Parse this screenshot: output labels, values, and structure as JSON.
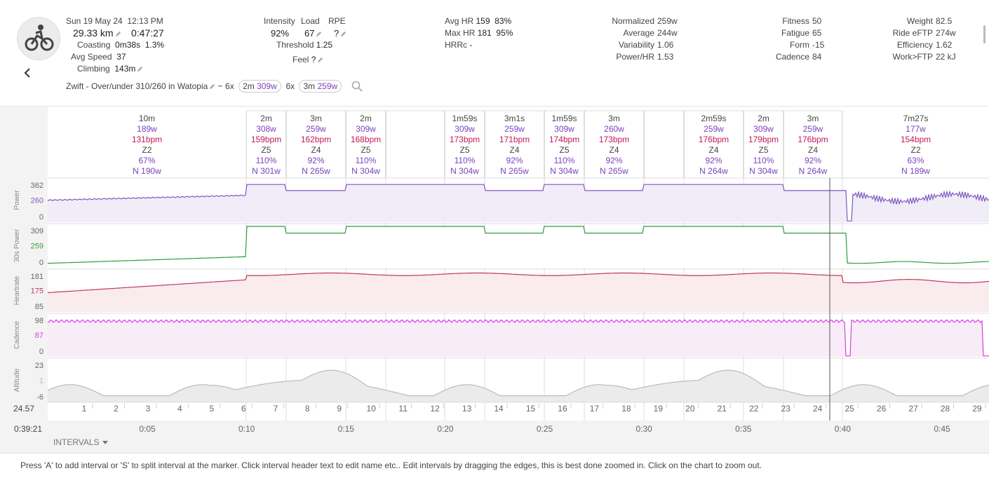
{
  "header": {
    "date": "Sun 19 May 24",
    "time": "12:13 PM",
    "distance": "29.33 km",
    "duration": "0:47:27",
    "coasting_label": "Coasting",
    "coasting_value": "0m38s",
    "coasting_pct": "1.3%",
    "avg_speed_label": "Avg Speed",
    "avg_speed_value": "37",
    "climbing_label": "Climbing",
    "climbing_value": "143m",
    "intensity_label": "Intensity",
    "intensity_value": "92%",
    "load_label": "Load",
    "load_value": "67",
    "rpe_label": "RPE",
    "rpe_value": "?",
    "threshold_label": "Threshold",
    "threshold_value": "1.25",
    "feel_label": "Feel",
    "feel_value": "?",
    "avghr_label": "Avg HR",
    "avghr_value": "159",
    "avghr_pct": "83%",
    "maxhr_label": "Max HR",
    "maxhr_value": "181",
    "maxhr_pct": "95%",
    "hrrc_label": "HRRc",
    "hrrc_value": "-",
    "normalized_label": "Normalized",
    "normalized_value": "259w",
    "average_label": "Average",
    "average_value": "244w",
    "variability_label": "Variability",
    "variability_value": "1.06",
    "powerhr_label": "Power/HR",
    "powerhr_value": "1.53",
    "fitness_label": "Fitness",
    "fitness_value": "50",
    "fatigue_label": "Fatigue",
    "fatigue_value": "65",
    "form_label": "Form",
    "form_value": "-15",
    "cadence_label": "Cadence",
    "cadence_value": "84",
    "weight_label": "Weight",
    "weight_value": "82.5",
    "rideftp_label": "Ride eFTP",
    "rideftp_value": "274w",
    "efficiency_label": "Efficiency",
    "efficiency_value": "1.62",
    "workftp_label": "Work>FTP",
    "workftp_value": "22 kJ",
    "workout_name": "Zwift - Over/under 310/260 in Watopia",
    "tilde": "~",
    "set1_reps": "6x",
    "set1_dur": "2m",
    "set1_power": "309w",
    "set2_reps": "6x",
    "set2_dur": "3m",
    "set2_power": "259w"
  },
  "intervals": [
    {
      "dur": "10m",
      "power": "189w",
      "hr": "131bpm",
      "zone": "Z2",
      "pct": "67%",
      "np": "N 190w"
    },
    {
      "dur": "2m",
      "power": "308w",
      "hr": "159bpm",
      "zone": "Z5",
      "pct": "110%",
      "np": "N 301w"
    },
    {
      "dur": "3m",
      "power": "259w",
      "hr": "162bpm",
      "zone": "Z4",
      "pct": "92%",
      "np": "N 265w"
    },
    {
      "dur": "2m",
      "power": "309w",
      "hr": "168bpm",
      "zone": "Z5",
      "pct": "110%",
      "np": "N 304w"
    },
    {
      "dur": "",
      "power": "",
      "hr": "",
      "zone": "",
      "pct": "",
      "np": ""
    },
    {
      "dur": "1m59s",
      "power": "309w",
      "hr": "173bpm",
      "zone": "Z5",
      "pct": "110%",
      "np": "N 304w"
    },
    {
      "dur": "3m1s",
      "power": "259w",
      "hr": "171bpm",
      "zone": "Z4",
      "pct": "92%",
      "np": "N 265w"
    },
    {
      "dur": "1m59s",
      "power": "309w",
      "hr": "174bpm",
      "zone": "Z5",
      "pct": "110%",
      "np": "N 304w"
    },
    {
      "dur": "3m",
      "power": "260w",
      "hr": "173bpm",
      "zone": "Z4",
      "pct": "92%",
      "np": "N 265w"
    },
    {
      "dur": "",
      "power": "",
      "hr": "",
      "zone": "",
      "pct": "",
      "np": ""
    },
    {
      "dur": "2m59s",
      "power": "259w",
      "hr": "176bpm",
      "zone": "Z4",
      "pct": "92%",
      "np": "N 264w"
    },
    {
      "dur": "2m",
      "power": "309w",
      "hr": "179bpm",
      "zone": "Z5",
      "pct": "110%",
      "np": "N 304w"
    },
    {
      "dur": "3m",
      "power": "259w",
      "hr": "176bpm",
      "zone": "Z4",
      "pct": "92%",
      "np": "N 264w"
    },
    {
      "dur": "7m27s",
      "power": "177w",
      "hr": "154bpm",
      "zone": "Z2",
      "pct": "63%",
      "np": "N 189w"
    }
  ],
  "tracks": [
    {
      "label": "Power",
      "ticks": [
        "362",
        "260",
        "0"
      ],
      "color": "#7e57c2",
      "fill": "#f1edf8"
    },
    {
      "label": "30s Power",
      "ticks": [
        "309",
        "259",
        "0"
      ],
      "color": "#2e9e3a",
      "fill": "#fff"
    },
    {
      "label": "Heartrate",
      "ticks": [
        "181",
        "175",
        "85"
      ],
      "color": "#c2375a",
      "fill": "#f9ebee"
    },
    {
      "label": "Cadence",
      "ticks": [
        "98",
        "87",
        "0"
      ],
      "color": "#d63ce0",
      "fill": "#f7ecf8"
    },
    {
      "label": "Altitude",
      "ticks": [
        "23",
        "1",
        "-6"
      ],
      "color": "#bbbbbb",
      "fill": "#ebebeb"
    }
  ],
  "km_start": "24.57",
  "km_labels": [
    "1",
    "2",
    "3",
    "4",
    "5",
    "6",
    "7",
    "8",
    "9",
    "10",
    "11",
    "12",
    "13",
    "14",
    "15",
    "16",
    "17",
    "18",
    "19",
    "20",
    "21",
    "22",
    "23",
    "24",
    "25",
    "26",
    "27",
    "28",
    "29"
  ],
  "time_start": "0:39:21",
  "time_labels": [
    "0:05",
    "0:10",
    "0:15",
    "0:20",
    "0:25",
    "0:30",
    "0:35",
    "0:40",
    "0:45"
  ],
  "intervals_toggle": "INTERVALS",
  "help_text": "Press 'A' to add interval or 'S' to split interval at the marker. Click interval header text to edit name etc.. Edit intervals by dragging the edges, this is best done zoomed in. Click on the chart to zoom out.",
  "colors": {
    "accent": "#7b3fbf",
    "hr": "#c2185b",
    "power": "#7e57c2"
  }
}
